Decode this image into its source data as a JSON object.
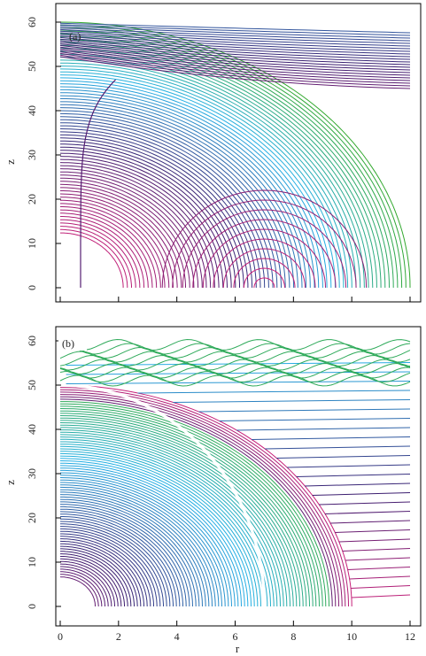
{
  "chart_data": [
    {
      "type": "contour",
      "panel_label": "(a)",
      "xlabel": "",
      "ylabel": "z",
      "xlim": [
        0,
        12
      ],
      "ylim": [
        0,
        60
      ],
      "x_ticks": [
        0,
        2,
        4,
        6,
        8,
        10,
        12
      ],
      "y_ticks": [
        0,
        10,
        20,
        30,
        40,
        50,
        60
      ],
      "x_tick_labels": [],
      "y_tick_labels": [
        "0",
        "10",
        "20",
        "30",
        "40",
        "50",
        "60"
      ],
      "grid": false,
      "legend": "none",
      "colormap": [
        "#e0207a",
        "#3a1e70",
        "#25b0e6",
        "#32a82e"
      ],
      "features": [
        {
          "kind": "closed-loop-center",
          "r": 7,
          "z": 0
        },
        {
          "kind": "vertical-contour-left",
          "r": 0.7,
          "z_range": [
            0,
            47
          ]
        },
        {
          "kind": "dense-band-outer-edge",
          "r_at_z0": 12,
          "z_at_r0": 60
        }
      ]
    },
    {
      "type": "contour",
      "panel_label": "(b)",
      "xlabel": "r",
      "ylabel": "z",
      "xlim": [
        0,
        12
      ],
      "ylim": [
        0,
        60
      ],
      "x_ticks": [
        0,
        2,
        4,
        6,
        8,
        10,
        12
      ],
      "y_ticks": [
        0,
        10,
        20,
        30,
        40,
        50,
        60
      ],
      "x_tick_labels": [
        "0",
        "2",
        "4",
        "6",
        "8",
        "10",
        "12"
      ],
      "y_tick_labels": [
        "0",
        "10",
        "20",
        "30",
        "40",
        "50",
        "60"
      ],
      "grid": false,
      "legend": "none",
      "colormap": [
        "#e0207a",
        "#3a1e70",
        "#25b0e6",
        "#32a82e"
      ],
      "features": [
        {
          "kind": "solid-boundary",
          "r_at_z0": 10,
          "z_at_r0": 50
        },
        {
          "kind": "white-gap-contour",
          "r_at_z0": 7,
          "z_at_r0": 50
        },
        {
          "kind": "horizontal-contours-outside",
          "z_range": [
            0,
            60
          ]
        }
      ]
    }
  ]
}
